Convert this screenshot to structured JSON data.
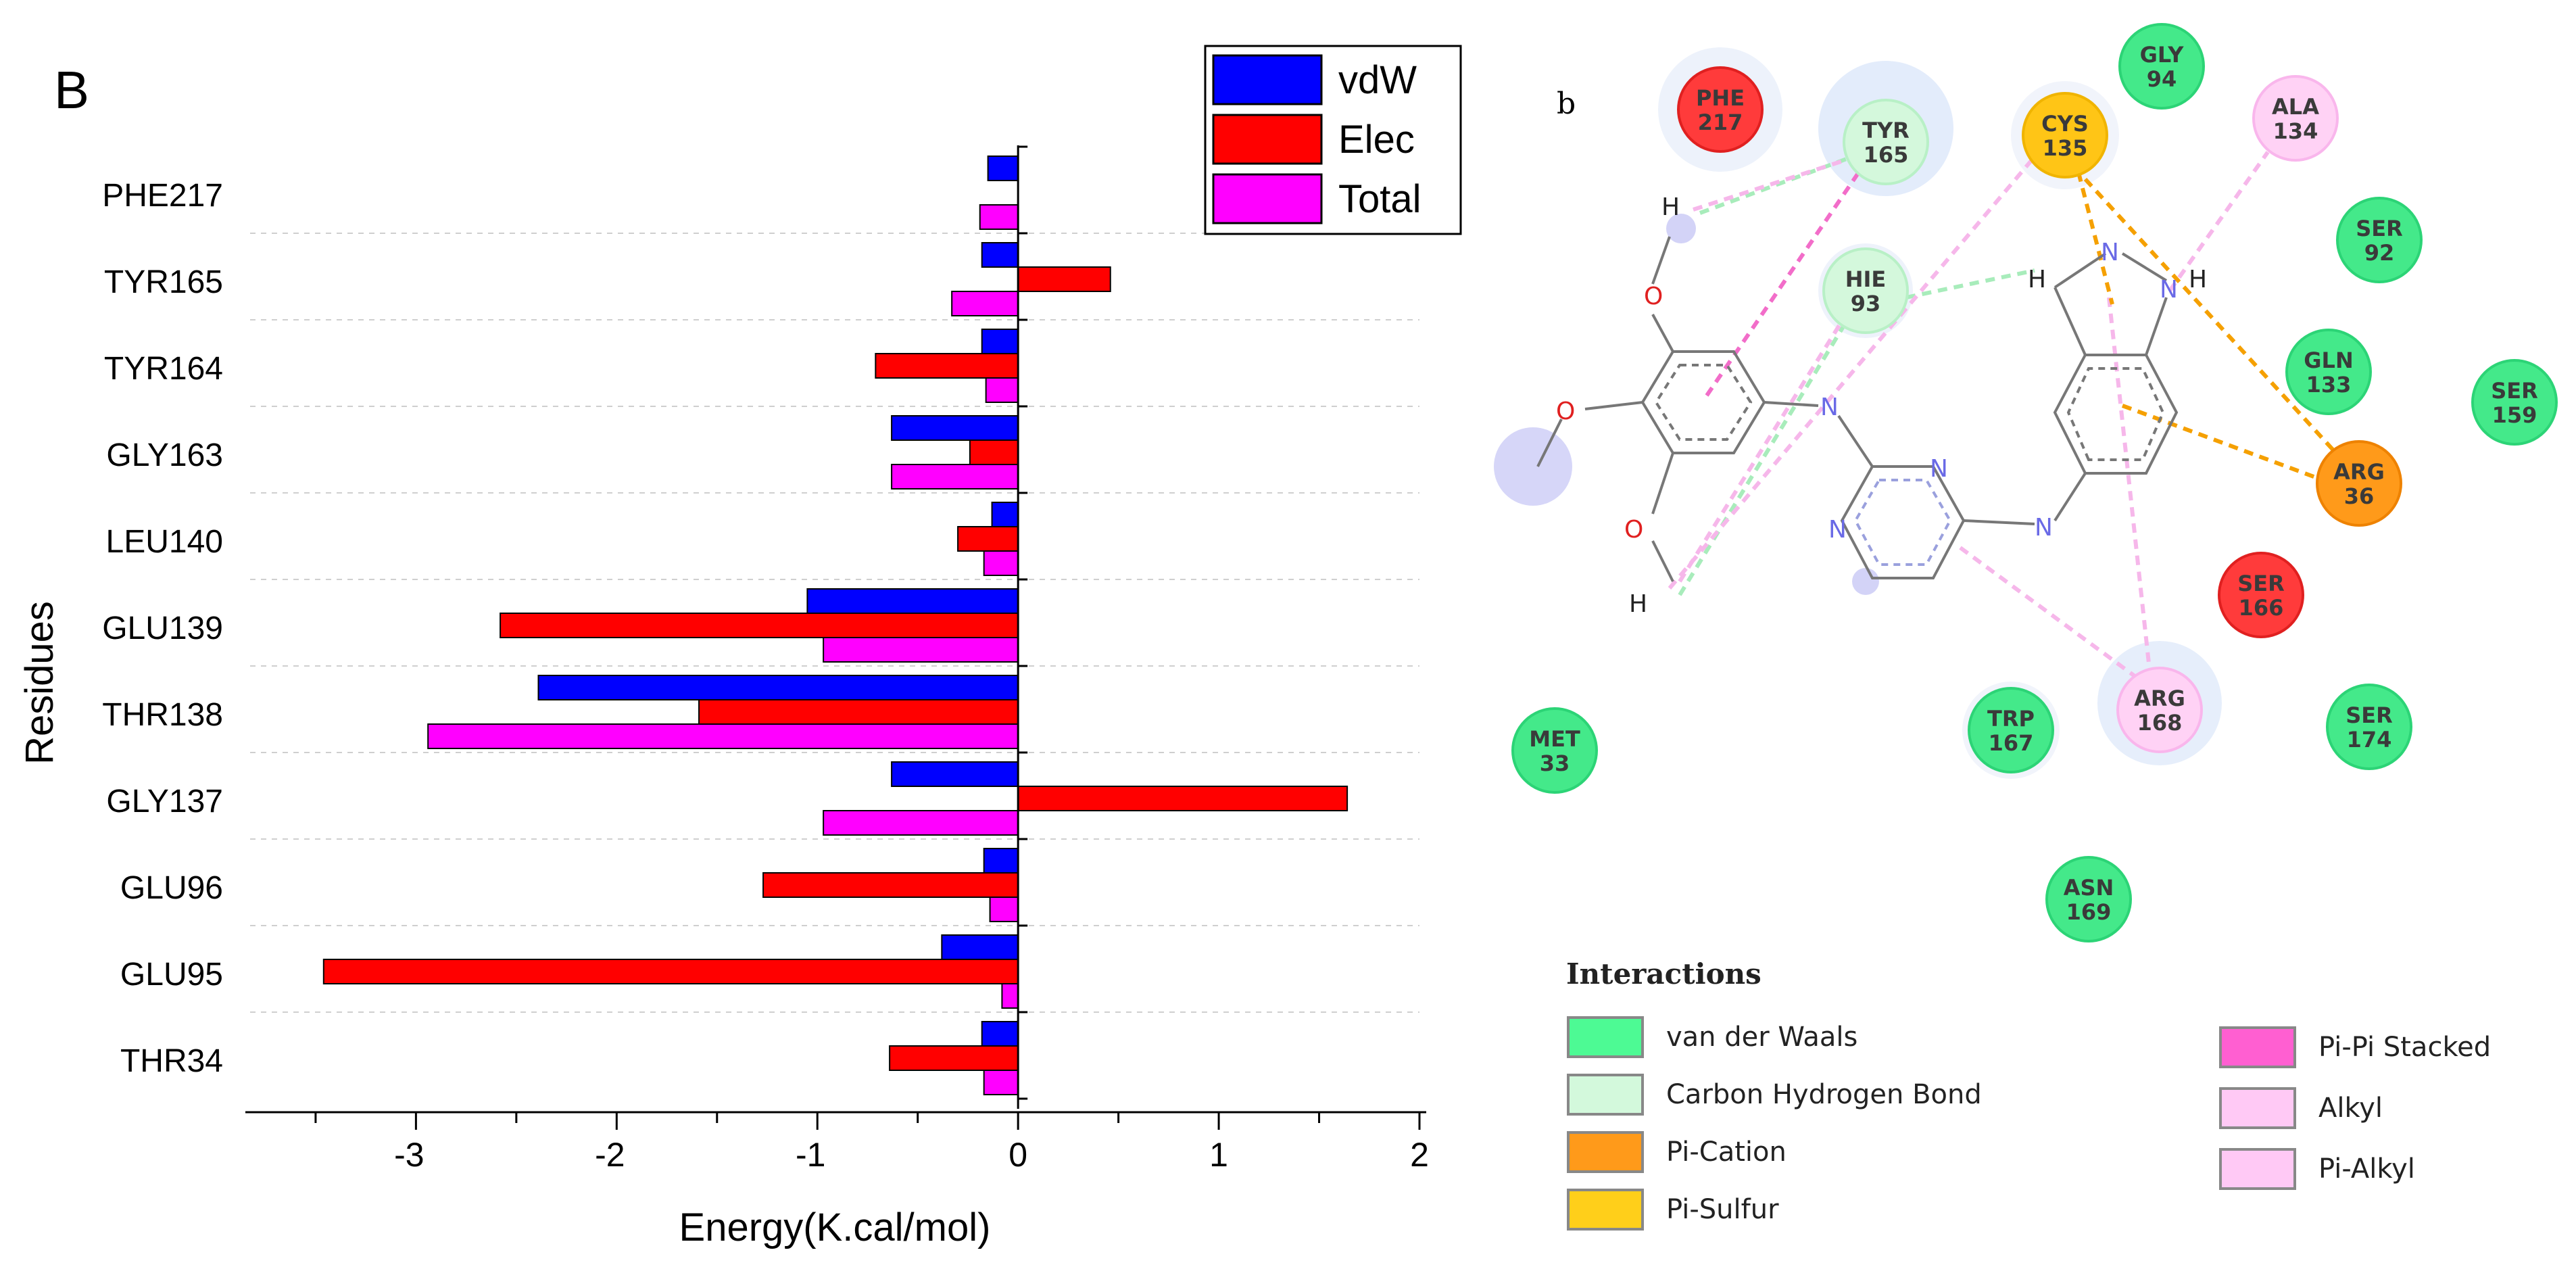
{
  "panel_label_left": "B",
  "panel_label_right": "b",
  "chart_data": {
    "type": "bar",
    "orientation": "horizontal",
    "title": "",
    "xlabel": "Energy(K.cal/mol)",
    "ylabel": "Residues",
    "xlim": [
      -3.85,
      2.0
    ],
    "xticks": [
      -3,
      -2,
      -1,
      0,
      1,
      2
    ],
    "categories": [
      "PHE217",
      "TYR165",
      "TYR164",
      "GLY163",
      "LEU140",
      "GLU139",
      "THR138",
      "GLY137",
      "GLU96",
      "GLU95",
      "THR34"
    ],
    "series": [
      {
        "name": "vdW",
        "color": "#0000ff",
        "values": [
          -0.15,
          -0.18,
          -0.18,
          -0.63,
          -0.13,
          -1.05,
          -2.39,
          -0.63,
          -0.17,
          -0.38,
          -0.18
        ]
      },
      {
        "name": "Elec",
        "color": "#ff0000",
        "values": [
          0.0,
          0.46,
          -0.71,
          -0.24,
          -0.3,
          -2.58,
          -1.59,
          1.64,
          -1.27,
          -3.46,
          -0.64
        ]
      },
      {
        "name": "Total",
        "color": "#ff00ff",
        "values": [
          -0.19,
          -0.33,
          -0.16,
          -0.63,
          -0.17,
          -0.97,
          -2.94,
          -0.97,
          -0.14,
          -0.08,
          -0.17
        ]
      }
    ],
    "legend_position": "top-right",
    "grid": "horizontal dashed separators"
  },
  "interaction_diagram": {
    "residues": [
      {
        "name": "PHE",
        "num": "217",
        "type": "unfavorable"
      },
      {
        "name": "TYR",
        "num": "165",
        "type": "carbon_h"
      },
      {
        "name": "CYS",
        "num": "135",
        "type": "pi_sulfur"
      },
      {
        "name": "GLY",
        "num": "94",
        "type": "vdw"
      },
      {
        "name": "ALA",
        "num": "134",
        "type": "alkyl"
      },
      {
        "name": "SER",
        "num": "92",
        "type": "vdw"
      },
      {
        "name": "HIE",
        "num": "93",
        "type": "carbon_h"
      },
      {
        "name": "GLN",
        "num": "133",
        "type": "vdw"
      },
      {
        "name": "SER",
        "num": "159",
        "type": "vdw"
      },
      {
        "name": "ARG",
        "num": "36",
        "type": "pi_cation"
      },
      {
        "name": "SER",
        "num": "166",
        "type": "unfavorable"
      },
      {
        "name": "MET",
        "num": "33",
        "type": "vdw"
      },
      {
        "name": "TRP",
        "num": "167",
        "type": "vdw"
      },
      {
        "name": "ARG",
        "num": "168",
        "type": "alkyl"
      },
      {
        "name": "SER",
        "num": "174",
        "type": "vdw"
      },
      {
        "name": "ASN",
        "num": "169",
        "type": "vdw"
      }
    ],
    "ligand_atoms": [
      {
        "id": "h1",
        "label": "H"
      },
      {
        "id": "o1",
        "label": "O"
      },
      {
        "id": "o2",
        "label": "O"
      },
      {
        "id": "o3",
        "label": "O"
      },
      {
        "id": "h2",
        "label": "H"
      },
      {
        "id": "n_amine1",
        "label": "N"
      },
      {
        "id": "n_pyr1",
        "label": "N"
      },
      {
        "id": "n_pyr2",
        "label": "N"
      },
      {
        "id": "n_amine2",
        "label": "N"
      },
      {
        "id": "h3",
        "label": "H"
      },
      {
        "id": "n_ind1",
        "label": "N"
      },
      {
        "id": "n_ind2",
        "label": "N"
      },
      {
        "id": "h4",
        "label": "H"
      }
    ],
    "legend_title": "Interactions",
    "legend_items": [
      {
        "label": "van der Waals",
        "color": "#4dfa94"
      },
      {
        "label": "Carbon Hydrogen Bond",
        "color": "#d3f9dc"
      },
      {
        "label": "Pi-Cation",
        "color": "#ff9a1a"
      },
      {
        "label": "Pi-Sulfur",
        "color": "#ffcf1a"
      },
      {
        "label": "Pi-Pi Stacked",
        "color": "#ff5fd1"
      },
      {
        "label": "Alkyl",
        "color": "#ffc9f5"
      },
      {
        "label": "Pi-Alkyl",
        "color": "#ffc9f5"
      }
    ]
  }
}
